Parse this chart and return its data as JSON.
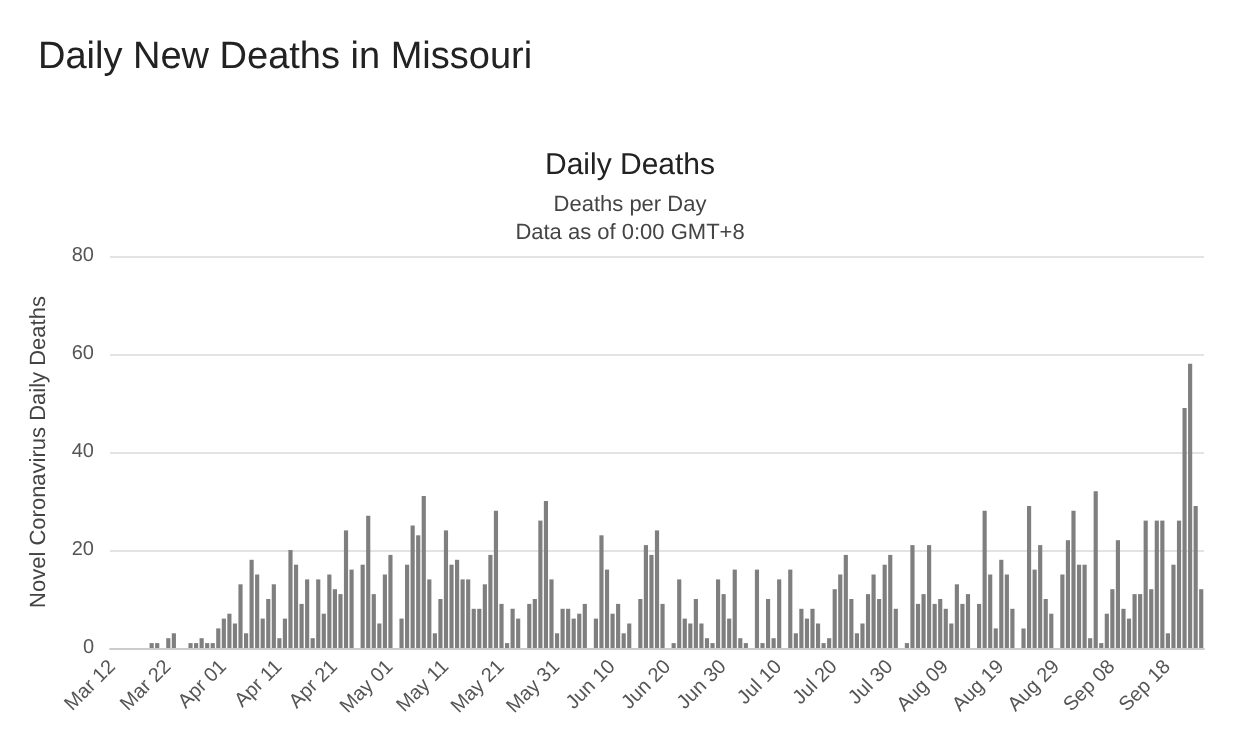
{
  "chart_data": {
    "type": "bar",
    "title": "Daily New Deaths in Missouri",
    "subtitle": "Daily Deaths",
    "annotations": [
      "Deaths per Day",
      "Data as of 0:00 GMT+8"
    ],
    "ylabel": "Novel Coronavirus Daily Deaths",
    "categories": [
      "Mar 12",
      null,
      null,
      null,
      null,
      null,
      null,
      null,
      null,
      null,
      "Mar 22",
      null,
      null,
      null,
      null,
      null,
      null,
      null,
      null,
      null,
      "Apr 01",
      null,
      null,
      null,
      null,
      null,
      null,
      null,
      null,
      null,
      "Apr 11",
      null,
      null,
      null,
      null,
      null,
      null,
      null,
      null,
      null,
      "Apr 21",
      null,
      null,
      null,
      null,
      null,
      null,
      null,
      null,
      null,
      "May 01",
      null,
      null,
      null,
      null,
      null,
      null,
      null,
      null,
      null,
      "May 11",
      null,
      null,
      null,
      null,
      null,
      null,
      null,
      null,
      null,
      "May 21",
      null,
      null,
      null,
      null,
      null,
      null,
      null,
      null,
      null,
      "May 31",
      null,
      null,
      null,
      null,
      null,
      null,
      null,
      null,
      null,
      "Jun 10",
      null,
      null,
      null,
      null,
      null,
      null,
      null,
      null,
      null,
      "Jun 20",
      null,
      null,
      null,
      null,
      null,
      null,
      null,
      null,
      null,
      "Jun 30",
      null,
      null,
      null,
      null,
      null,
      null,
      null,
      null,
      null,
      "Jul 10",
      null,
      null,
      null,
      null,
      null,
      null,
      null,
      null,
      null,
      "Jul 20",
      null,
      null,
      null,
      null,
      null,
      null,
      null,
      null,
      null,
      "Jul 30",
      null,
      null,
      null,
      null,
      null,
      null,
      null,
      null,
      null,
      "Aug 09",
      null,
      null,
      null,
      null,
      null,
      null,
      null,
      null,
      null,
      "Aug 19",
      null,
      null,
      null,
      null,
      null,
      null,
      null,
      null,
      null,
      "Aug 29",
      null,
      null,
      null,
      null,
      null,
      null,
      null,
      null,
      null,
      "Sep 08",
      null,
      null,
      null,
      null,
      null,
      null,
      null,
      null,
      null,
      "Sep 18",
      null,
      null,
      null,
      null,
      null,
      null
    ],
    "values": [
      0,
      0,
      0,
      0,
      0,
      0,
      0,
      1,
      1,
      0,
      2,
      3,
      0,
      0,
      1,
      1,
      2,
      1,
      1,
      4,
      6,
      7,
      5,
      13,
      3,
      18,
      15,
      6,
      10,
      13,
      2,
      6,
      20,
      17,
      9,
      14,
      2,
      14,
      7,
      15,
      12,
      11,
      24,
      16,
      0,
      17,
      27,
      11,
      5,
      15,
      19,
      0,
      6,
      17,
      25,
      23,
      31,
      14,
      3,
      10,
      24,
      17,
      18,
      14,
      14,
      8,
      8,
      13,
      19,
      28,
      9,
      1,
      8,
      6,
      0,
      9,
      10,
      26,
      30,
      14,
      3,
      8,
      8,
      6,
      7,
      9,
      0,
      6,
      23,
      16,
      7,
      9,
      3,
      5,
      0,
      10,
      21,
      19,
      24,
      9,
      0,
      1,
      14,
      6,
      5,
      10,
      5,
      2,
      1,
      14,
      11,
      6,
      16,
      2,
      1,
      0,
      16,
      1,
      10,
      2,
      14,
      0,
      16,
      3,
      8,
      6,
      8,
      5,
      1,
      2,
      12,
      15,
      19,
      10,
      3,
      5,
      11,
      15,
      10,
      17,
      19,
      8,
      0,
      1,
      21,
      9,
      11,
      21,
      9,
      10,
      8,
      5,
      13,
      9,
      11,
      0,
      9,
      28,
      15,
      4,
      18,
      15,
      8,
      0,
      4,
      29,
      16,
      21,
      10,
      7,
      0,
      15,
      22,
      28,
      17,
      17,
      2,
      32,
      1,
      7,
      12,
      22,
      8,
      6,
      11,
      11,
      26,
      12,
      26,
      26,
      3,
      17,
      26,
      49,
      58,
      29,
      12
    ],
    "color": "#7f7f7f",
    "ylim": [
      0,
      80
    ],
    "yticks": [
      0,
      20,
      40,
      60,
      80
    ],
    "grid": "y"
  }
}
